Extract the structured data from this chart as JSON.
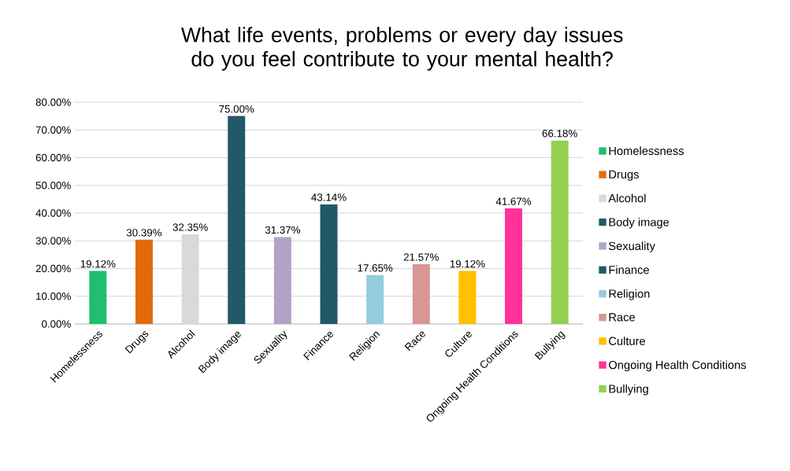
{
  "chart_data": {
    "type": "bar",
    "title": "What life events, problems or every day issues do you feel contribute to your mental health?",
    "categories": [
      "Homelessness",
      "Drugs",
      "Alcohol",
      "Body image",
      "Sexuality",
      "Finance",
      "Religion",
      "Race",
      "Culture",
      "Ongoing Health Conditions",
      "Bullying"
    ],
    "series": [
      {
        "name": "Homelessness",
        "color": "#1fbf6f",
        "values": [
          19.12,
          null,
          null,
          null,
          null,
          null,
          null,
          null,
          null,
          null,
          null
        ],
        "value_labels": [
          "19.12%",
          null,
          null,
          null,
          null,
          null,
          null,
          null,
          null,
          null,
          null
        ]
      },
      {
        "name": "Drugs",
        "color": "#e36c0a",
        "values": [
          null,
          30.39,
          null,
          null,
          null,
          null,
          null,
          null,
          null,
          null,
          null
        ],
        "value_labels": [
          null,
          "30.39%",
          null,
          null,
          null,
          null,
          null,
          null,
          null,
          null,
          null
        ]
      },
      {
        "name": "Alcohol",
        "color": "#d9d9d9",
        "values": [
          null,
          null,
          32.35,
          null,
          null,
          null,
          null,
          null,
          null,
          null,
          null
        ],
        "value_labels": [
          null,
          null,
          "32.35%",
          null,
          null,
          null,
          null,
          null,
          null,
          null,
          null
        ]
      },
      {
        "name": "Body image",
        "color": "#215968",
        "values": [
          null,
          null,
          null,
          75.0,
          null,
          null,
          null,
          null,
          null,
          null,
          null
        ],
        "value_labels": [
          null,
          null,
          null,
          "75.00%",
          null,
          null,
          null,
          null,
          null,
          null,
          null
        ]
      },
      {
        "name": "Sexuality",
        "color": "#b3a2c7",
        "values": [
          null,
          null,
          null,
          null,
          31.37,
          null,
          null,
          null,
          null,
          null,
          null
        ],
        "value_labels": [
          null,
          null,
          null,
          null,
          "31.37%",
          null,
          null,
          null,
          null,
          null,
          null
        ]
      },
      {
        "name": "Finance",
        "color": "#215968",
        "values": [
          null,
          null,
          null,
          null,
          null,
          43.14,
          null,
          null,
          null,
          null,
          null
        ],
        "value_labels": [
          null,
          null,
          null,
          null,
          null,
          "43.14%",
          null,
          null,
          null,
          null,
          null
        ]
      },
      {
        "name": "Religion",
        "color": "#93cddd",
        "values": [
          null,
          null,
          null,
          null,
          null,
          null,
          17.65,
          null,
          null,
          null,
          null
        ],
        "value_labels": [
          null,
          null,
          null,
          null,
          null,
          null,
          "17.65%",
          null,
          null,
          null,
          null
        ]
      },
      {
        "name": "Race",
        "color": "#d99694",
        "values": [
          null,
          null,
          null,
          null,
          null,
          null,
          null,
          21.57,
          null,
          null,
          null
        ],
        "value_labels": [
          null,
          null,
          null,
          null,
          null,
          null,
          null,
          "21.57%",
          null,
          null,
          null
        ]
      },
      {
        "name": "Culture",
        "color": "#ffc000",
        "values": [
          null,
          null,
          null,
          null,
          null,
          null,
          null,
          null,
          19.12,
          null,
          null
        ],
        "value_labels": [
          null,
          null,
          null,
          null,
          null,
          null,
          null,
          null,
          "19.12%",
          null,
          null
        ]
      },
      {
        "name": "Ongoing Health Conditions",
        "color": "#ff3399",
        "values": [
          null,
          null,
          null,
          null,
          null,
          null,
          null,
          null,
          null,
          41.67,
          null
        ],
        "value_labels": [
          null,
          null,
          null,
          null,
          null,
          null,
          null,
          null,
          null,
          "41.67%",
          null
        ]
      },
      {
        "name": "Bullying",
        "color": "#92d050",
        "values": [
          null,
          null,
          null,
          null,
          null,
          null,
          null,
          null,
          null,
          null,
          66.18
        ],
        "value_labels": [
          null,
          null,
          null,
          null,
          null,
          null,
          null,
          null,
          null,
          null,
          "66.18%"
        ]
      }
    ],
    "ylim": [
      0,
      80
    ],
    "yticks": [
      {
        "value": 0,
        "label": "0.00%"
      },
      {
        "value": 10,
        "label": "10.00%"
      },
      {
        "value": 20,
        "label": "20.00%"
      },
      {
        "value": 30,
        "label": "30.00%"
      },
      {
        "value": 40,
        "label": "40.00%"
      },
      {
        "value": 50,
        "label": "50.00%"
      },
      {
        "value": 60,
        "label": "60.00%"
      },
      {
        "value": 70,
        "label": "70.00%"
      },
      {
        "value": 80,
        "label": "80.00%"
      }
    ],
    "grid": "y",
    "legend": "right"
  }
}
